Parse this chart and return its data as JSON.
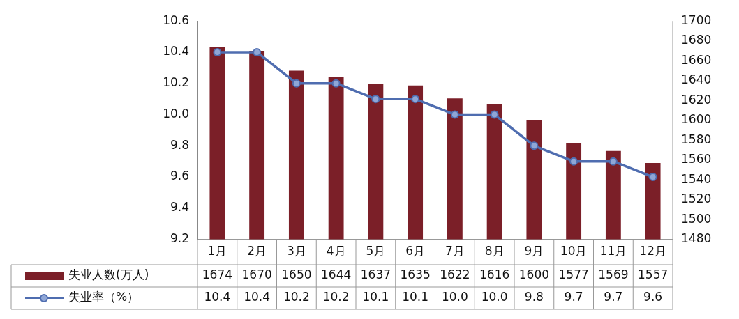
{
  "chart_data": {
    "type": "bar",
    "categories": [
      "1月",
      "2月",
      "3月",
      "4月",
      "5月",
      "6月",
      "7月",
      "8月",
      "9月",
      "10月",
      "11月",
      "12月"
    ],
    "series": [
      {
        "name": "失业人数(万人)",
        "axis": "y2",
        "color": "#7b1f28",
        "values": [
          1674,
          1670,
          1650,
          1644,
          1637,
          1635,
          1622,
          1616,
          1600,
          1577,
          1569,
          1557
        ],
        "value_labels": [
          "1674",
          "1670",
          "1650",
          "1644",
          "1637",
          "1635",
          "1622",
          "1616",
          "1600",
          "1577",
          "1569",
          "1557"
        ]
      },
      {
        "name": "失业率（%）",
        "type": "line",
        "axis": "y",
        "color": "#4f6db0",
        "marker": "circle",
        "values": [
          10.4,
          10.4,
          10.2,
          10.2,
          10.1,
          10.1,
          10.0,
          10.0,
          9.8,
          9.7,
          9.7,
          9.6
        ],
        "value_labels": [
          "10.4",
          "10.4",
          "10.2",
          "10.2",
          "10.1",
          "10.1",
          "10.0",
          "10.0",
          "9.8",
          "9.7",
          "9.7",
          "9.6"
        ]
      }
    ],
    "ylim": [
      9.2,
      10.6
    ],
    "yticks": [
      {
        "value": 9.2,
        "label": "9.2"
      },
      {
        "value": 9.4,
        "label": "9.4"
      },
      {
        "value": 9.6,
        "label": "9.6"
      },
      {
        "value": 9.8,
        "label": "9.8"
      },
      {
        "value": 10,
        "label": "10.0"
      },
      {
        "value": 10.2,
        "label": "10.2"
      },
      {
        "value": 10.4,
        "label": "10.4"
      },
      {
        "value": 10.6,
        "label": "10.6"
      }
    ],
    "y2lim": [
      1480,
      1700
    ],
    "y2ticks": [
      1480,
      1500,
      1520,
      1540,
      1560,
      1580,
      1600,
      1620,
      1640,
      1660,
      1680,
      1700
    ],
    "legend": "bottom"
  }
}
